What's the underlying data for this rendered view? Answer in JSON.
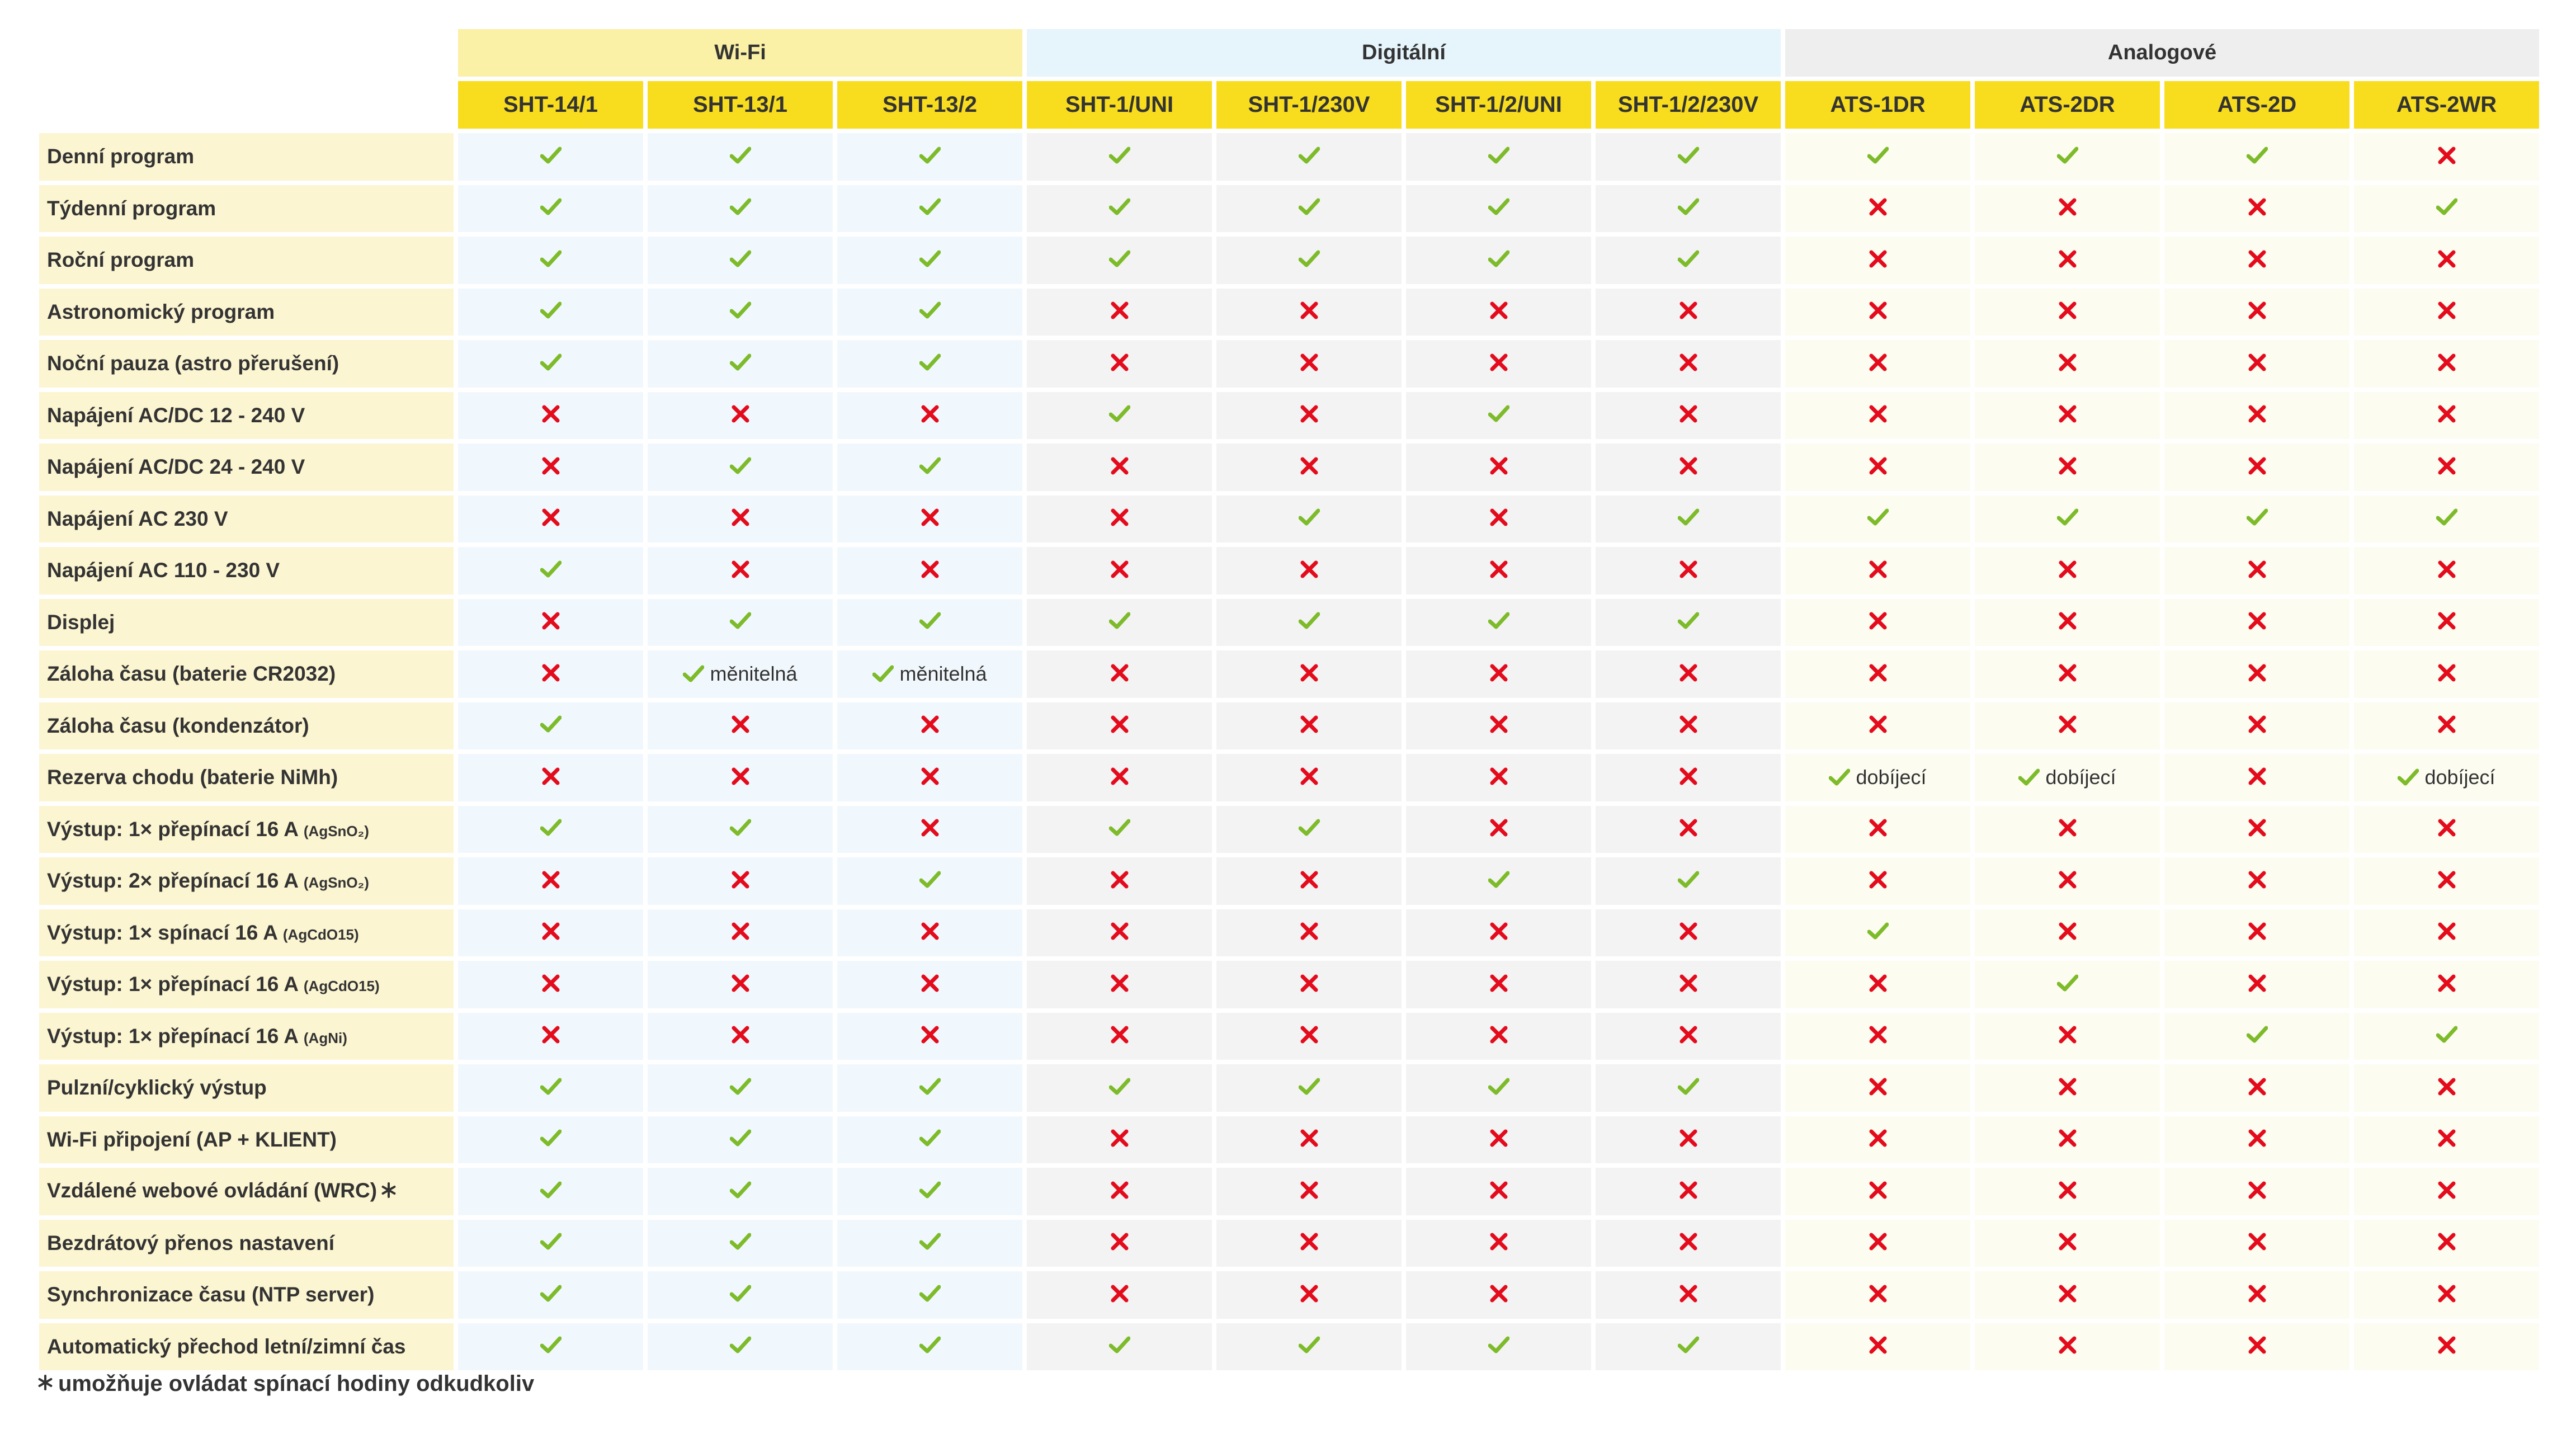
{
  "groups": [
    {
      "label": "Wi-Fi",
      "span": 3,
      "zone": "wifi"
    },
    {
      "label": "Digitální",
      "span": 4,
      "zone": "digi"
    },
    {
      "label": "Analogové",
      "span": 4,
      "zone": "analog"
    }
  ],
  "products": [
    "SHT-14/1",
    "SHT-13/1",
    "SHT-13/2",
    "SHT-1/UNI",
    "SHT-1/230V",
    "SHT-1/2/UNI",
    "SHT-1/2/230V",
    "ATS-1DR",
    "ATS-2DR",
    "ATS-2D",
    "ATS-2WR"
  ],
  "product_zones": [
    "wifi",
    "wifi",
    "wifi",
    "digi",
    "digi",
    "digi",
    "digi",
    "analog",
    "analog",
    "analog",
    "analog"
  ],
  "colors": {
    "check": "#7dbb2a",
    "cross": "#e30b1c",
    "header_yellow": "#f8dd1f",
    "wifi_group": "#faf0a6",
    "digi_group": "#e6f4fc",
    "analog_group": "#eeeeee"
  },
  "icons": {
    "yes": "check-icon",
    "no": "cross-icon",
    "asterisk": "asterisk-icon"
  },
  "rows": [
    {
      "label": "Denní program",
      "values": [
        "y",
        "y",
        "y",
        "y",
        "y",
        "y",
        "y",
        "y",
        "y",
        "y",
        "n"
      ]
    },
    {
      "label": "Týdenní program",
      "values": [
        "y",
        "y",
        "y",
        "y",
        "y",
        "y",
        "y",
        "n",
        "n",
        "n",
        "y"
      ]
    },
    {
      "label": "Roční program",
      "values": [
        "y",
        "y",
        "y",
        "y",
        "y",
        "y",
        "y",
        "n",
        "n",
        "n",
        "n"
      ]
    },
    {
      "label": "Astronomický program",
      "values": [
        "y",
        "y",
        "y",
        "n",
        "n",
        "n",
        "n",
        "n",
        "n",
        "n",
        "n"
      ]
    },
    {
      "label": "Noční pauza (astro přerušení)",
      "values": [
        "y",
        "y",
        "y",
        "n",
        "n",
        "n",
        "n",
        "n",
        "n",
        "n",
        "n"
      ]
    },
    {
      "label": "Napájení AC/DC 12 - 240 V",
      "values": [
        "n",
        "n",
        "n",
        "y",
        "n",
        "y",
        "n",
        "n",
        "n",
        "n",
        "n"
      ]
    },
    {
      "label": "Napájení AC/DC 24 - 240 V",
      "values": [
        "n",
        "y",
        "y",
        "n",
        "n",
        "n",
        "n",
        "n",
        "n",
        "n",
        "n"
      ]
    },
    {
      "label": "Napájení AC 230 V",
      "values": [
        "n",
        "n",
        "n",
        "n",
        "y",
        "n",
        "y",
        "y",
        "y",
        "y",
        "y"
      ]
    },
    {
      "label": "Napájení AC 110 - 230 V",
      "values": [
        "y",
        "n",
        "n",
        "n",
        "n",
        "n",
        "n",
        "n",
        "n",
        "n",
        "n"
      ]
    },
    {
      "label": "Displej",
      "values": [
        "n",
        "y",
        "y",
        "y",
        "y",
        "y",
        "y",
        "n",
        "n",
        "n",
        "n"
      ]
    },
    {
      "label": "Záloha času (baterie CR2032)",
      "values": [
        "n",
        "y:měnitelná",
        "y:měnitelná",
        "n",
        "n",
        "n",
        "n",
        "n",
        "n",
        "n",
        "n"
      ]
    },
    {
      "label": "Záloha času (kondenzátor)",
      "values": [
        "y",
        "n",
        "n",
        "n",
        "n",
        "n",
        "n",
        "n",
        "n",
        "n",
        "n"
      ]
    },
    {
      "label": "Rezerva chodu (baterie NiMh)",
      "values": [
        "n",
        "n",
        "n",
        "n",
        "n",
        "n",
        "n",
        "y:dobíjecí",
        "y:dobíjecí",
        "n",
        "y:dobíjecí"
      ]
    },
    {
      "label": "Výstup: 1× přepínací 16 A",
      "sub": "(AgSnO₂)",
      "values": [
        "y",
        "y",
        "n",
        "y",
        "y",
        "n",
        "n",
        "n",
        "n",
        "n",
        "n"
      ]
    },
    {
      "label": "Výstup: 2× přepínací 16 A",
      "sub": "(AgSnO₂)",
      "values": [
        "n",
        "n",
        "y",
        "n",
        "n",
        "y",
        "y",
        "n",
        "n",
        "n",
        "n"
      ]
    },
    {
      "label": "Výstup: 1× spínací 16 A",
      "sub": "(AgCdO15)",
      "values": [
        "n",
        "n",
        "n",
        "n",
        "n",
        "n",
        "n",
        "y",
        "n",
        "n",
        "n"
      ]
    },
    {
      "label": "Výstup: 1× přepínací 16 A",
      "sub": "(AgCdO15)",
      "values": [
        "n",
        "n",
        "n",
        "n",
        "n",
        "n",
        "n",
        "n",
        "y",
        "n",
        "n"
      ]
    },
    {
      "label": "Výstup: 1× přepínací 16 A",
      "sub": "(AgNi)",
      "values": [
        "n",
        "n",
        "n",
        "n",
        "n",
        "n",
        "n",
        "n",
        "n",
        "y",
        "y"
      ]
    },
    {
      "label": "Pulzní/cyklický výstup",
      "values": [
        "y",
        "y",
        "y",
        "y",
        "y",
        "y",
        "y",
        "n",
        "n",
        "n",
        "n"
      ]
    },
    {
      "label": "Wi-Fi připojení (AP + KLIENT)",
      "values": [
        "y",
        "y",
        "y",
        "n",
        "n",
        "n",
        "n",
        "n",
        "n",
        "n",
        "n"
      ]
    },
    {
      "label": "Vzdálené webové ovládání (WRC)",
      "asterisk": true,
      "values": [
        "y",
        "y",
        "y",
        "n",
        "n",
        "n",
        "n",
        "n",
        "n",
        "n",
        "n"
      ]
    },
    {
      "label": "Bezdrátový přenos nastavení",
      "values": [
        "y",
        "y",
        "y",
        "n",
        "n",
        "n",
        "n",
        "n",
        "n",
        "n",
        "n"
      ]
    },
    {
      "label": "Synchronizace času (NTP server)",
      "values": [
        "y",
        "y",
        "y",
        "n",
        "n",
        "n",
        "n",
        "n",
        "n",
        "n",
        "n"
      ]
    },
    {
      "label": "Automatický přechod letní/zimní čas",
      "values": [
        "y",
        "y",
        "y",
        "y",
        "y",
        "y",
        "y",
        "n",
        "n",
        "n",
        "n"
      ]
    }
  ],
  "footnote": "umožňuje ovládat spínací hodiny odkudkoliv"
}
